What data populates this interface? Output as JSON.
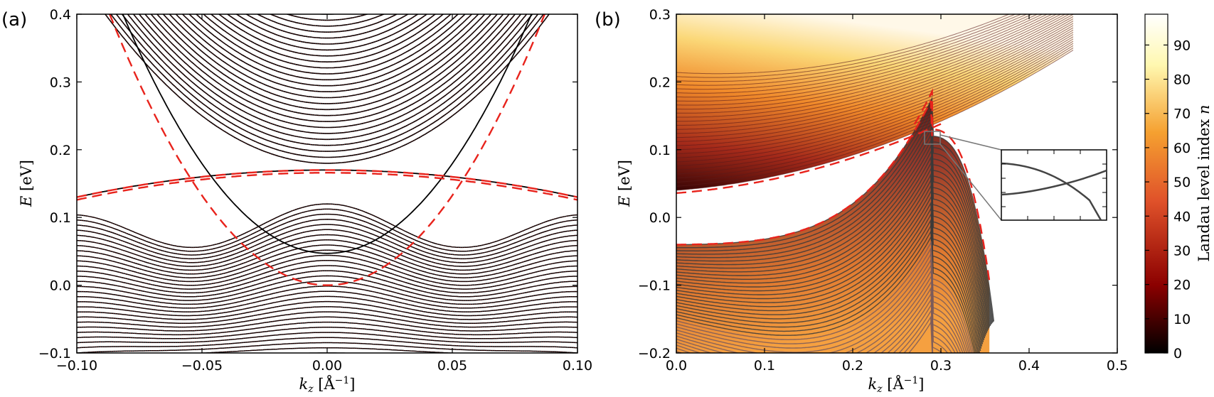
{
  "figure": {
    "panel_a_label": "(a)",
    "panel_b_label": "(b)"
  },
  "chart_data": [
    {
      "type": "line",
      "panel": "(a)",
      "xlabel": "k_z [Å⁻¹]",
      "ylabel": "E [eV]",
      "xlim": [
        -0.1,
        0.1
      ],
      "ylim": [
        -0.1,
        0.4
      ],
      "xticks": [
        "−0.10",
        "−0.05",
        "0.00",
        "0.05",
        "0.10"
      ],
      "yticks": [
        "−0.1",
        "0.0",
        "0.1",
        "0.2",
        "0.3",
        "0.4"
      ],
      "grid": false,
      "series": [
        {
          "style": "black solid",
          "description_values": {
            "conduction_landau_levels": {
              "count": 26,
              "E_at_kz0_first": 0.18,
              "E_at_kz0_last": 0.4,
              "curvature_eV_per_A2": 28
            },
            "valence_landau_levels": {
              "count": 30,
              "E_at_kz0_first": 0.12,
              "E_at_kz0_last": -0.1
            },
            "lowest_crossing_level": {
              "E_at_kz0": 0.047,
              "E_at_kz0_1": 0.17
            }
          }
        },
        {
          "style": "red dashed",
          "curves": [
            {
              "E_at_kz0": 0.0,
              "kz_at_E0_4": -0.087
            },
            {
              "E_at_kz0": 0.17,
              "E_at_kz_pm0_1": 0.13
            },
            {
              "E_at_kz0": 0.166,
              "E_at_kz_pm0_1": 0.126
            }
          ]
        }
      ]
    },
    {
      "type": "line",
      "panel": "(b)",
      "xlabel": "k_z [Å⁻¹]",
      "ylabel": "E [eV]",
      "xlim": [
        0.0,
        0.5
      ],
      "ylim": [
        -0.2,
        0.3
      ],
      "xticks": [
        "0.0",
        "0.1",
        "0.2",
        "0.3",
        "0.4",
        "0.5"
      ],
      "yticks": [
        "−0.2",
        "−0.1",
        "0.0",
        "0.1",
        "0.2",
        "0.3"
      ],
      "grid": false,
      "colorbar": {
        "label": "Landau level index n",
        "range": [
          0,
          99
        ],
        "ticks": [
          "0",
          "10",
          "20",
          "30",
          "40",
          "50",
          "60",
          "70",
          "80",
          "90"
        ],
        "colormap": [
          "#000000",
          "#8b0000",
          "#e0522a",
          "#f5a030",
          "#fff8b0",
          "#ffffff"
        ]
      },
      "series": [
        {
          "style": "colored by n",
          "description_values": {
            "conduction_band_edge": {
              "E_at_kz0": 0.04,
              "E_at_kz0_29": 0.12
            },
            "valence_band_edge": {
              "E_at_kz0": -0.04,
              "E_at_kz0_28": 0.12,
              "kz_at_Emin": 0.35
            }
          }
        },
        {
          "style": "red dashed",
          "curves": [
            {
              "E_at_kz0": 0.036,
              "E_at_kz0_28": 0.135,
              "kz_at_Emin": 0.35
            },
            {
              "E_at_kz0": -0.04,
              "E_at_kz0_28": 0.12
            }
          ]
        }
      ],
      "inset": {
        "description": "zoom near k_z≈0.29, E≈0.115"
      }
    }
  ]
}
